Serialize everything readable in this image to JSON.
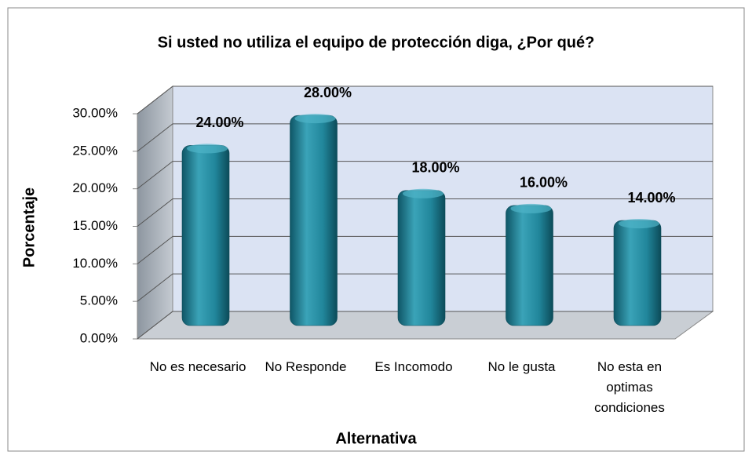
{
  "chart_data": {
    "type": "bar",
    "title": "Si usted no utiliza el equipo de protección diga, ¿Por qué?",
    "x_label": "Alternativa",
    "y_label": "Porcentaje",
    "categories": [
      "No es necesario",
      "No Responde",
      "Es Incomodo",
      "No le gusta",
      "No esta en optimas condiciones"
    ],
    "values": [
      24,
      28,
      18,
      16,
      14
    ],
    "value_labels": [
      "24.00%",
      "28.00%",
      "18.00%",
      "16.00%",
      "14.00%"
    ],
    "color": "#21869b",
    "ylim": [
      0,
      30
    ],
    "yticks": [
      {
        "value": 0,
        "label": "0.00%"
      },
      {
        "value": 5,
        "label": "5.00%"
      },
      {
        "value": 10,
        "label": "10.00%"
      },
      {
        "value": 15,
        "label": "15.00%"
      },
      {
        "value": 20,
        "label": "20.00%"
      },
      {
        "value": 25,
        "label": "25.00%"
      },
      {
        "value": 30,
        "label": "30.00%"
      }
    ],
    "grid": true
  }
}
